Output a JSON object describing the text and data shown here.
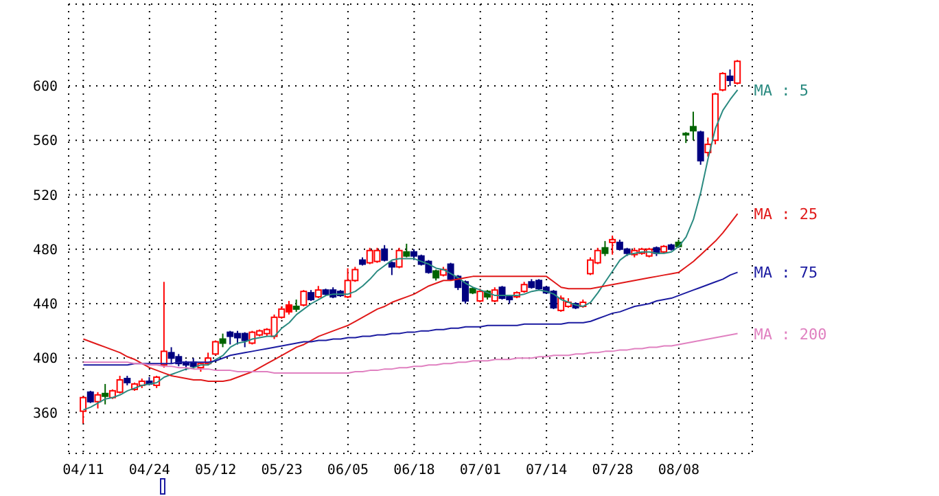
{
  "chart_data": {
    "type": "candlestick",
    "categories": [
      "04/11",
      null,
      null,
      null,
      null,
      null,
      null,
      null,
      null,
      "04/24",
      null,
      null,
      null,
      null,
      null,
      null,
      null,
      null,
      "05/12",
      null,
      null,
      null,
      null,
      null,
      null,
      null,
      null,
      "05/23",
      null,
      null,
      null,
      null,
      null,
      null,
      null,
      null,
      "06/05",
      null,
      null,
      null,
      null,
      null,
      null,
      null,
      null,
      "06/18",
      null,
      null,
      null,
      null,
      null,
      null,
      null,
      null,
      "07/01",
      null,
      null,
      null,
      null,
      null,
      null,
      null,
      null,
      "07/14",
      null,
      null,
      null,
      null,
      null,
      null,
      null,
      null,
      "07/28",
      null,
      null,
      null,
      null,
      null,
      null,
      null,
      null,
      "08/08",
      null,
      null,
      null,
      null,
      null,
      null,
      null,
      null
    ],
    "ohlc": [
      [
        361,
        372,
        352,
        371
      ],
      [
        375,
        376,
        367,
        368
      ],
      [
        368,
        375,
        363,
        373
      ],
      [
        374,
        381,
        366,
        372
      ],
      [
        371,
        377,
        370,
        376
      ],
      [
        375,
        387,
        374,
        384
      ],
      [
        385,
        387,
        380,
        382
      ],
      [
        377,
        382,
        376,
        381
      ],
      [
        380,
        385,
        378,
        383
      ],
      [
        383,
        386,
        380,
        381
      ],
      [
        380,
        387,
        378,
        386
      ],
      [
        395,
        456,
        393,
        405
      ],
      [
        404,
        408,
        396,
        400
      ],
      [
        401,
        403,
        394,
        396
      ],
      [
        397,
        398,
        391,
        395
      ],
      [
        397,
        400,
        392,
        394
      ],
      [
        393,
        397,
        390,
        396
      ],
      [
        396,
        404,
        395,
        400
      ],
      [
        403,
        413,
        402,
        412
      ],
      [
        414,
        418,
        408,
        411
      ],
      [
        419,
        420,
        410,
        416
      ],
      [
        418,
        420,
        410,
        415
      ],
      [
        418,
        419,
        408,
        413
      ],
      [
        411,
        420,
        410,
        419
      ],
      [
        417,
        421,
        416,
        420
      ],
      [
        418,
        422,
        416,
        421
      ],
      [
        416,
        432,
        414,
        430
      ],
      [
        430,
        438,
        429,
        436
      ],
      [
        439,
        442,
        432,
        434
      ],
      [
        438,
        443,
        434,
        436
      ],
      [
        439,
        450,
        438,
        449
      ],
      [
        448,
        450,
        442,
        443
      ],
      [
        445,
        453,
        444,
        450
      ],
      [
        450,
        451,
        446,
        447
      ],
      [
        450,
        452,
        444,
        445
      ],
      [
        449,
        450,
        445,
        446
      ],
      [
        445,
        466,
        444,
        457
      ],
      [
        457,
        467,
        456,
        465
      ],
      [
        472,
        474,
        468,
        469
      ],
      [
        470,
        481,
        469,
        479
      ],
      [
        471,
        481,
        470,
        479
      ],
      [
        480,
        483,
        471,
        472
      ],
      [
        470,
        471,
        461,
        467
      ],
      [
        467,
        481,
        466,
        479
      ],
      [
        478,
        484,
        474,
        475
      ],
      [
        478,
        480,
        472,
        475
      ],
      [
        475,
        476,
        468,
        469
      ],
      [
        471,
        472,
        462,
        463
      ],
      [
        464,
        465,
        457,
        459
      ],
      [
        461,
        467,
        460,
        465
      ],
      [
        469,
        470,
        457,
        458
      ],
      [
        460,
        461,
        450,
        452
      ],
      [
        456,
        457,
        440,
        442
      ],
      [
        451,
        452,
        447,
        448
      ],
      [
        442,
        451,
        441,
        449
      ],
      [
        449,
        450,
        443,
        445
      ],
      [
        442,
        452,
        441,
        450
      ],
      [
        452,
        453,
        443,
        444
      ],
      [
        445,
        446,
        440,
        443
      ],
      [
        445,
        449,
        444,
        448
      ],
      [
        449,
        456,
        448,
        454
      ],
      [
        456,
        458,
        451,
        452
      ],
      [
        457,
        458,
        450,
        451
      ],
      [
        452,
        453,
        447,
        448
      ],
      [
        449,
        450,
        436,
        437
      ],
      [
        435,
        446,
        434,
        444
      ],
      [
        438,
        444,
        437,
        441
      ],
      [
        440,
        441,
        436,
        437
      ],
      [
        438,
        443,
        437,
        441
      ],
      [
        462,
        474,
        461,
        472
      ],
      [
        470,
        481,
        469,
        479
      ],
      [
        481,
        486,
        475,
        477
      ],
      [
        485,
        490,
        476,
        487
      ],
      [
        485,
        487,
        479,
        480
      ],
      [
        480,
        481,
        475,
        477
      ],
      [
        476,
        481,
        474,
        479
      ],
      [
        477,
        481,
        476,
        480
      ],
      [
        475,
        481,
        474,
        480
      ],
      [
        481,
        482,
        475,
        477
      ],
      [
        478,
        483,
        477,
        482
      ],
      [
        483,
        484,
        479,
        480
      ],
      [
        485,
        487,
        481,
        482
      ],
      [
        565,
        566,
        558,
        564
      ],
      [
        570,
        581,
        560,
        567
      ],
      [
        566,
        567,
        542,
        545
      ],
      [
        551,
        562,
        548,
        557
      ],
      [
        560,
        595,
        557,
        594
      ],
      [
        597,
        610,
        596,
        609
      ],
      [
        607,
        612,
        600,
        604
      ],
      [
        602,
        619,
        601,
        618
      ]
    ],
    "colors": [
      "#ff0000",
      "#000080",
      "#ff0000",
      "#006400",
      "#ff0000",
      "#ff0000",
      "#000080",
      "#ff0000",
      "#ff0000",
      "#000080",
      "#ff0000",
      "#ff0000",
      "#000080",
      "#000080",
      "#000080",
      "#000080",
      "#ff0000",
      "#ff0000",
      "#ff0000",
      "#006400",
      "#000080",
      "#000080",
      "#000080",
      "#ff0000",
      "#ff0000",
      "#ff0000",
      "#ff0000",
      "#ff0000",
      "#ff0000",
      "#006400",
      "#ff0000",
      "#000080",
      "#ff0000",
      "#000080",
      "#000080",
      "#000080",
      "#ff0000",
      "#ff0000",
      "#000080",
      "#ff0000",
      "#ff0000",
      "#000080",
      "#000080",
      "#ff0000",
      "#006400",
      "#000080",
      "#000080",
      "#000080",
      "#006400",
      "#ff0000",
      "#000080",
      "#000080",
      "#000080",
      "#006400",
      "#ff0000",
      "#006400",
      "#ff0000",
      "#000080",
      "#000080",
      "#ff0000",
      "#ff0000",
      "#000080",
      "#000080",
      "#000080",
      "#000080",
      "#ff0000",
      "#ff0000",
      "#000080",
      "#ff0000",
      "#ff0000",
      "#ff0000",
      "#006400",
      "#ff0000",
      "#000080",
      "#000080",
      "#ff0000",
      "#ff0000",
      "#ff0000",
      "#000080",
      "#ff0000",
      "#000080",
      "#006400",
      "#006400",
      "#006400",
      "#000080",
      "#ff0000",
      "#ff0000",
      "#ff0000",
      "#000080",
      "#ff0000"
    ],
    "series": [
      {
        "name": "MA : 5",
        "type": "line",
        "color": "#2a8a80",
        "values": [
          362,
          364,
          367,
          370,
          371,
          373,
          376,
          378,
          380,
          381,
          382,
          386,
          388,
          390,
          392,
          393,
          395,
          395,
          399,
          402,
          408,
          411,
          412,
          414,
          415,
          416,
          416,
          422,
          426,
          432,
          436,
          440,
          443,
          446,
          447,
          447,
          447,
          449,
          453,
          458,
          464,
          468,
          472,
          473,
          473,
          473,
          471,
          469,
          466,
          465,
          462,
          459,
          455,
          452,
          450,
          448,
          446,
          446,
          446,
          446,
          447,
          449,
          450,
          449,
          447,
          443,
          441,
          439,
          438,
          441,
          448,
          456,
          464,
          472,
          476,
          477,
          478,
          478,
          477,
          477,
          478,
          482,
          489,
          502,
          522,
          547,
          569,
          582,
          590,
          597
        ]
      },
      {
        "name": "MA : 25",
        "type": "line",
        "color": "#e01818",
        "values": [
          414,
          412,
          410,
          408,
          406,
          404,
          401,
          399,
          396,
          393,
          391,
          389,
          387,
          386,
          385,
          384,
          384,
          383,
          383,
          383,
          384,
          386,
          388,
          390,
          393,
          396,
          399,
          402,
          405,
          408,
          410,
          413,
          416,
          418,
          420,
          422,
          424,
          427,
          430,
          433,
          436,
          438,
          441,
          443,
          445,
          447,
          450,
          453,
          455,
          457,
          457,
          458,
          459,
          460,
          460,
          460,
          460,
          460,
          460,
          460,
          460,
          460,
          460,
          460,
          456,
          452,
          451,
          451,
          451,
          451,
          452,
          453,
          454,
          455,
          456,
          457,
          458,
          459,
          460,
          461,
          462,
          463,
          467,
          471,
          476,
          481,
          486,
          492,
          499,
          506
        ]
      },
      {
        "name": "MA : 75",
        "type": "line",
        "color": "#1a1aa0",
        "values": [
          395,
          395,
          395,
          395,
          395,
          395,
          395,
          396,
          396,
          396,
          396,
          396,
          396,
          397,
          397,
          397,
          397,
          397,
          398,
          400,
          402,
          403,
          404,
          405,
          406,
          407,
          408,
          409,
          410,
          411,
          412,
          412,
          413,
          413,
          414,
          414,
          415,
          415,
          416,
          416,
          417,
          417,
          418,
          418,
          419,
          419,
          420,
          420,
          421,
          421,
          422,
          422,
          423,
          423,
          423,
          424,
          424,
          424,
          424,
          424,
          425,
          425,
          425,
          425,
          425,
          425,
          426,
          426,
          426,
          427,
          429,
          431,
          433,
          434,
          436,
          438,
          439,
          440,
          442,
          443,
          444,
          446,
          448,
          450,
          452,
          454,
          456,
          458,
          461,
          463
        ]
      },
      {
        "name": "MA : 200",
        "type": "line",
        "color": "#e080c0",
        "values": [
          397,
          397,
          397,
          397,
          397,
          397,
          397,
          396,
          396,
          395,
          395,
          394,
          394,
          393,
          393,
          392,
          392,
          392,
          391,
          391,
          391,
          390,
          390,
          390,
          390,
          390,
          389,
          389,
          389,
          389,
          389,
          389,
          389,
          389,
          389,
          389,
          389,
          390,
          390,
          391,
          391,
          392,
          392,
          393,
          393,
          394,
          394,
          395,
          395,
          396,
          396,
          397,
          397,
          398,
          398,
          398,
          399,
          399,
          399,
          400,
          400,
          400,
          401,
          401,
          402,
          402,
          402,
          403,
          403,
          404,
          404,
          405,
          405,
          406,
          406,
          407,
          407,
          408,
          408,
          409,
          409,
          410,
          411,
          412,
          413,
          414,
          415,
          416,
          417,
          418
        ]
      }
    ],
    "ylim": [
      330,
      660
    ],
    "yticks": [
      360,
      400,
      440,
      480,
      520,
      560,
      600
    ],
    "grid": true,
    "marker": "none"
  }
}
